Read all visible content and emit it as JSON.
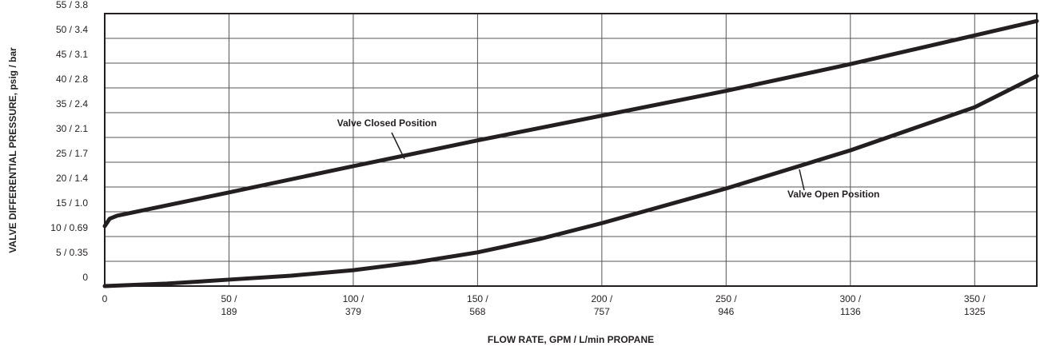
{
  "chart_data": {
    "type": "line",
    "xlabel": "FLOW RATE, GPM / L/min PROPANE",
    "ylabel": "VALVE DIFFERENTIAL PRESSURE, psig / bar",
    "xlim": [
      0,
      375
    ],
    "ylim": [
      0,
      55
    ],
    "xticks": [
      0,
      {
        "value": 50,
        "label": "50 /\n189"
      },
      {
        "value": 100,
        "label": "100 /\n379"
      },
      {
        "value": 150,
        "label": "150 /\n568"
      },
      {
        "value": 200,
        "label": "200 /\n757"
      },
      {
        "value": 250,
        "label": "250 /\n946"
      },
      {
        "value": 300,
        "label": "300 /\n1136"
      },
      {
        "value": 350,
        "label": "350 /\n1325"
      }
    ],
    "yticks": [
      0,
      {
        "value": 5,
        "label": "5 / 0.35"
      },
      {
        "value": 10,
        "label": "10 / 0.69"
      },
      {
        "value": 15,
        "label": "15 / 1.0"
      },
      {
        "value": 20,
        "label": "20 / 1.4"
      },
      {
        "value": 25,
        "label": "25 / 1.7"
      },
      {
        "value": 30,
        "label": "30 / 2.1"
      },
      {
        "value": 35,
        "label": "35 / 2.4"
      },
      {
        "value": 40,
        "label": "40 / 2.8"
      },
      {
        "value": 45,
        "label": "45 / 3.1"
      },
      {
        "value": 50,
        "label": "50 / 3.4"
      },
      {
        "value": 55,
        "label": "55 / 3.8"
      }
    ],
    "grid": true,
    "series": [
      {
        "name": "Valve Closed Position",
        "color": "#231f20",
        "x": [
          0,
          2,
          5,
          50,
          100,
          150,
          200,
          250,
          300,
          350,
          375
        ],
        "values": [
          12.1,
          13.6,
          14.2,
          18.9,
          24.2,
          29.4,
          34.4,
          39.4,
          44.8,
          50.6,
          53.5
        ]
      },
      {
        "name": "Valve Open Position",
        "color": "#231f20",
        "x": [
          0,
          25,
          50,
          75,
          100,
          125,
          150,
          175,
          200,
          250,
          300,
          350,
          375
        ],
        "values": [
          0,
          0.5,
          1.3,
          2.1,
          3.2,
          4.8,
          6.8,
          9.5,
          12.7,
          19.7,
          27.4,
          36.1,
          42.4
        ]
      }
    ]
  }
}
